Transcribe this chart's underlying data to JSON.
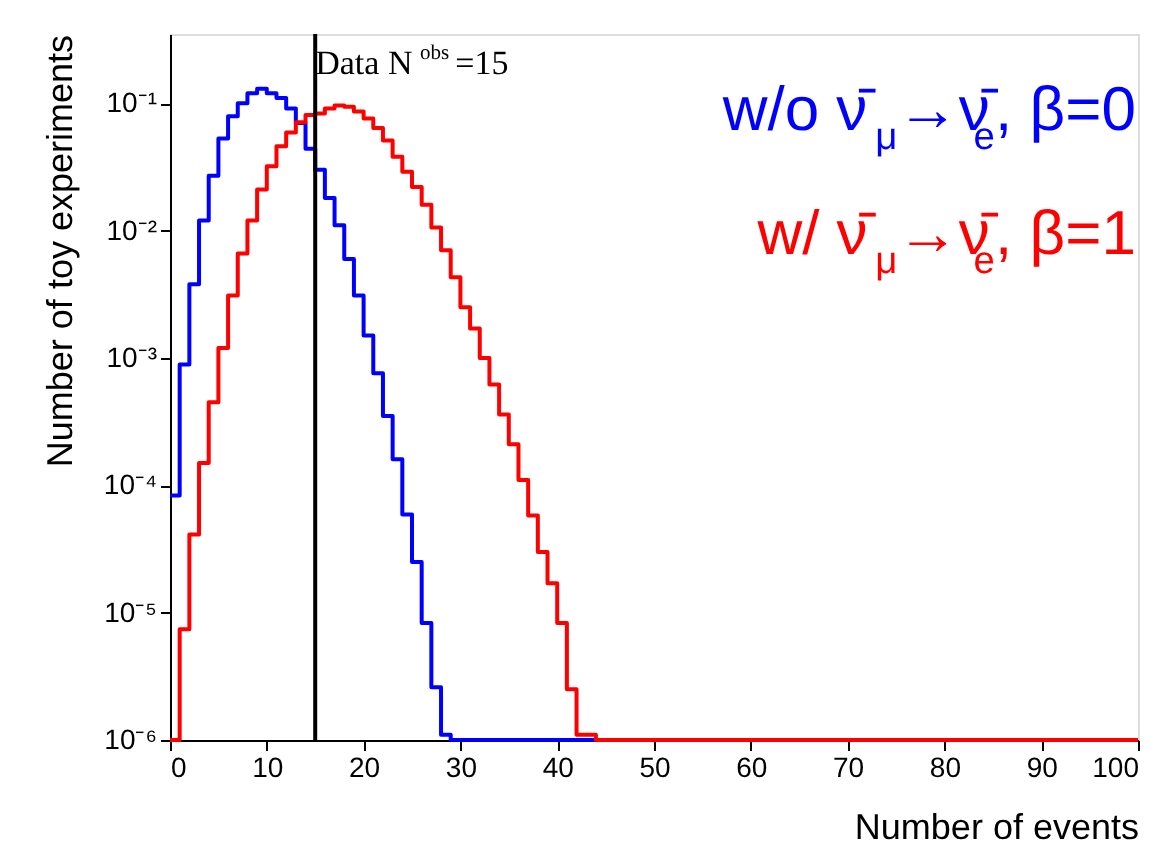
{
  "chart_data": {
    "type": "histogram",
    "xlabel": "Number of events",
    "ylabel": "Number of toy experiments",
    "bins": [
      0,
      1,
      2,
      3,
      4,
      5,
      6,
      7,
      8,
      9,
      10,
      11,
      12,
      13,
      14,
      15,
      16,
      17,
      18,
      19,
      20,
      21,
      22,
      23,
      24,
      25,
      26,
      27,
      28,
      29,
      30,
      31,
      32,
      33,
      34,
      35,
      36,
      37,
      38,
      39,
      40,
      41,
      42,
      43,
      44,
      45,
      46,
      47,
      48,
      49,
      50,
      51,
      52,
      53,
      54,
      55,
      56,
      57,
      58,
      59,
      60,
      61,
      62,
      63,
      64,
      65,
      66,
      67,
      68,
      69,
      70,
      71,
      72,
      73,
      74,
      75,
      76,
      77,
      78,
      79,
      80,
      81,
      82,
      83,
      84,
      85,
      86,
      87,
      88,
      89,
      90,
      91,
      92,
      93,
      94,
      95,
      96,
      97,
      98,
      99,
      100
    ],
    "series": [
      {
        "name": "w/o ν̄$_{μ}$→ν̄$_{e}$, β=0",
        "color": "#0000ff",
        "values": [
          8.3e-05,
          0.00089,
          0.0038,
          0.012,
          0.027,
          0.053,
          0.079,
          0.1,
          0.12,
          0.13,
          0.12,
          0.11,
          0.091,
          0.07,
          0.044,
          0.03,
          0.018,
          0.011,
          0.006,
          0.0031,
          0.0015,
          0.00076,
          0.00035,
          0.00016,
          5.9e-05,
          2.5e-05,
          8.3e-06,
          2.6e-06,
          1.1e-06,
          null,
          null,
          null,
          null,
          null,
          null,
          null,
          null,
          null,
          null,
          null,
          null,
          null,
          null,
          null,
          null,
          null,
          null,
          null,
          null,
          null,
          null,
          null,
          null,
          null,
          null,
          null,
          null,
          null,
          null,
          null,
          null,
          null,
          null,
          null,
          null,
          null,
          null,
          null,
          null,
          null,
          null,
          null,
          null,
          null,
          null,
          null,
          null,
          null,
          null,
          null,
          null,
          null,
          null,
          null,
          null,
          null,
          null,
          null,
          null,
          null,
          null,
          null,
          null,
          null,
          null,
          null,
          null,
          null,
          null,
          null
        ]
      },
      {
        "name": "w/ ν̄$_{μ}$→ν̄$_{e}$, β=1",
        "color": "#ff0000",
        "values": [
          null,
          7.4e-06,
          4.1e-05,
          0.00015,
          0.00045,
          0.0012,
          0.0031,
          0.0066,
          0.012,
          0.021,
          0.032,
          0.046,
          0.059,
          0.071,
          0.081,
          0.083,
          0.091,
          0.096,
          0.094,
          0.086,
          0.076,
          0.064,
          0.051,
          0.038,
          0.029,
          0.022,
          0.016,
          0.0106,
          0.007,
          0.0043,
          0.0025,
          0.0017,
          0.001,
          0.00062,
          0.00036,
          0.00021,
          0.00011,
          5.8e-05,
          3e-05,
          1.7e-05,
          8.3e-06,
          2.5e-06,
          1.1e-06,
          1.1e-06,
          null,
          null,
          null,
          null,
          null,
          null,
          null,
          null,
          null,
          null,
          null,
          null,
          null,
          null,
          null,
          null,
          null,
          null,
          null,
          null,
          null,
          null,
          null,
          null,
          null,
          null,
          null,
          null,
          null,
          null,
          null,
          null,
          null,
          null,
          null,
          null,
          null,
          null,
          null,
          null,
          null,
          null,
          null,
          null,
          null,
          null,
          null,
          null,
          null,
          null,
          null,
          null,
          null,
          null,
          null,
          null
        ]
      }
    ],
    "ref_lines": [
      {
        "axis": "x",
        "value": 15,
        "label": "Data N$^{obs}$=15",
        "color": "#000000"
      }
    ],
    "xlim": [
      0,
      100
    ],
    "xticks": [
      0,
      10,
      20,
      30,
      40,
      50,
      60,
      70,
      80,
      90,
      100
    ],
    "ylim": [
      1e-06,
      0.35
    ],
    "yticks": [
      {
        "value": 1e-06,
        "label": "10⁻⁶"
      },
      {
        "value": 1e-05,
        "label": "10⁻⁵"
      },
      {
        "value": 0.0001,
        "label": "10⁻⁴"
      },
      {
        "value": 0.001,
        "label": "10⁻³"
      },
      {
        "value": 0.01,
        "label": "10⁻²"
      },
      {
        "value": 0.1,
        "label": "10⁻¹"
      }
    ],
    "log": "y",
    "grid": false,
    "legend": "top right"
  }
}
